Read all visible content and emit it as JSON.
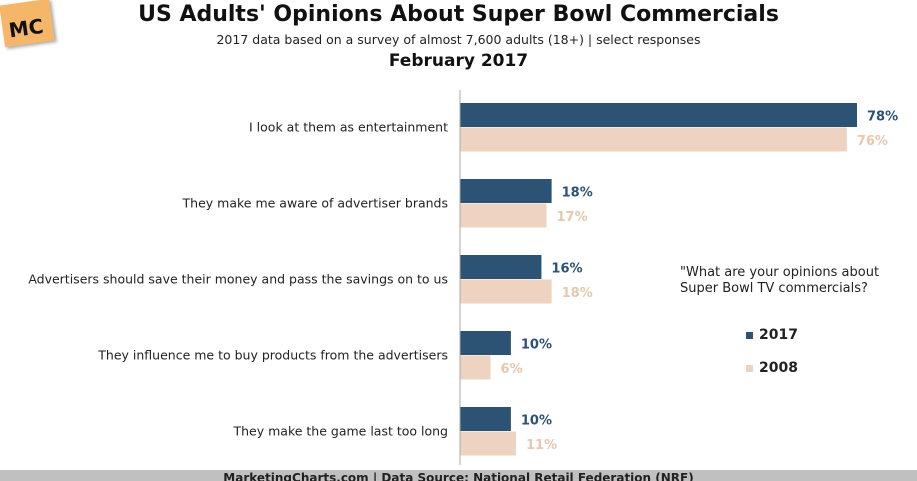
{
  "logo_text": "MC",
  "chart_data": {
    "type": "bar",
    "title": "US Adults' Opinions About Super Bowl Commercials",
    "subtitle": "2017 data based on a survey of almost 7,600 adults (18+) | select responses",
    "period": "February 2017",
    "categories": [
      "I look at them as entertainment",
      "They make me aware of advertiser brands",
      "Advertisers should save their money and pass the savings on to us",
      "They influence me to buy products from the advertisers",
      "They make the game last too long"
    ],
    "series": [
      {
        "name": "2017",
        "color": "#2c5274",
        "values": [
          78,
          18,
          16,
          10,
          10
        ]
      },
      {
        "name": "2008",
        "color": "#edd3c0",
        "values": [
          76,
          17,
          18,
          6,
          11
        ]
      }
    ],
    "legend_title": "\"What are your opinions about Super Bowl TV commercials?",
    "legend_position": "right",
    "xlim": [
      0,
      80
    ],
    "unit": "%"
  },
  "footer": "MarketingCharts.com | Data Source: National Retail Federation (NRF)"
}
